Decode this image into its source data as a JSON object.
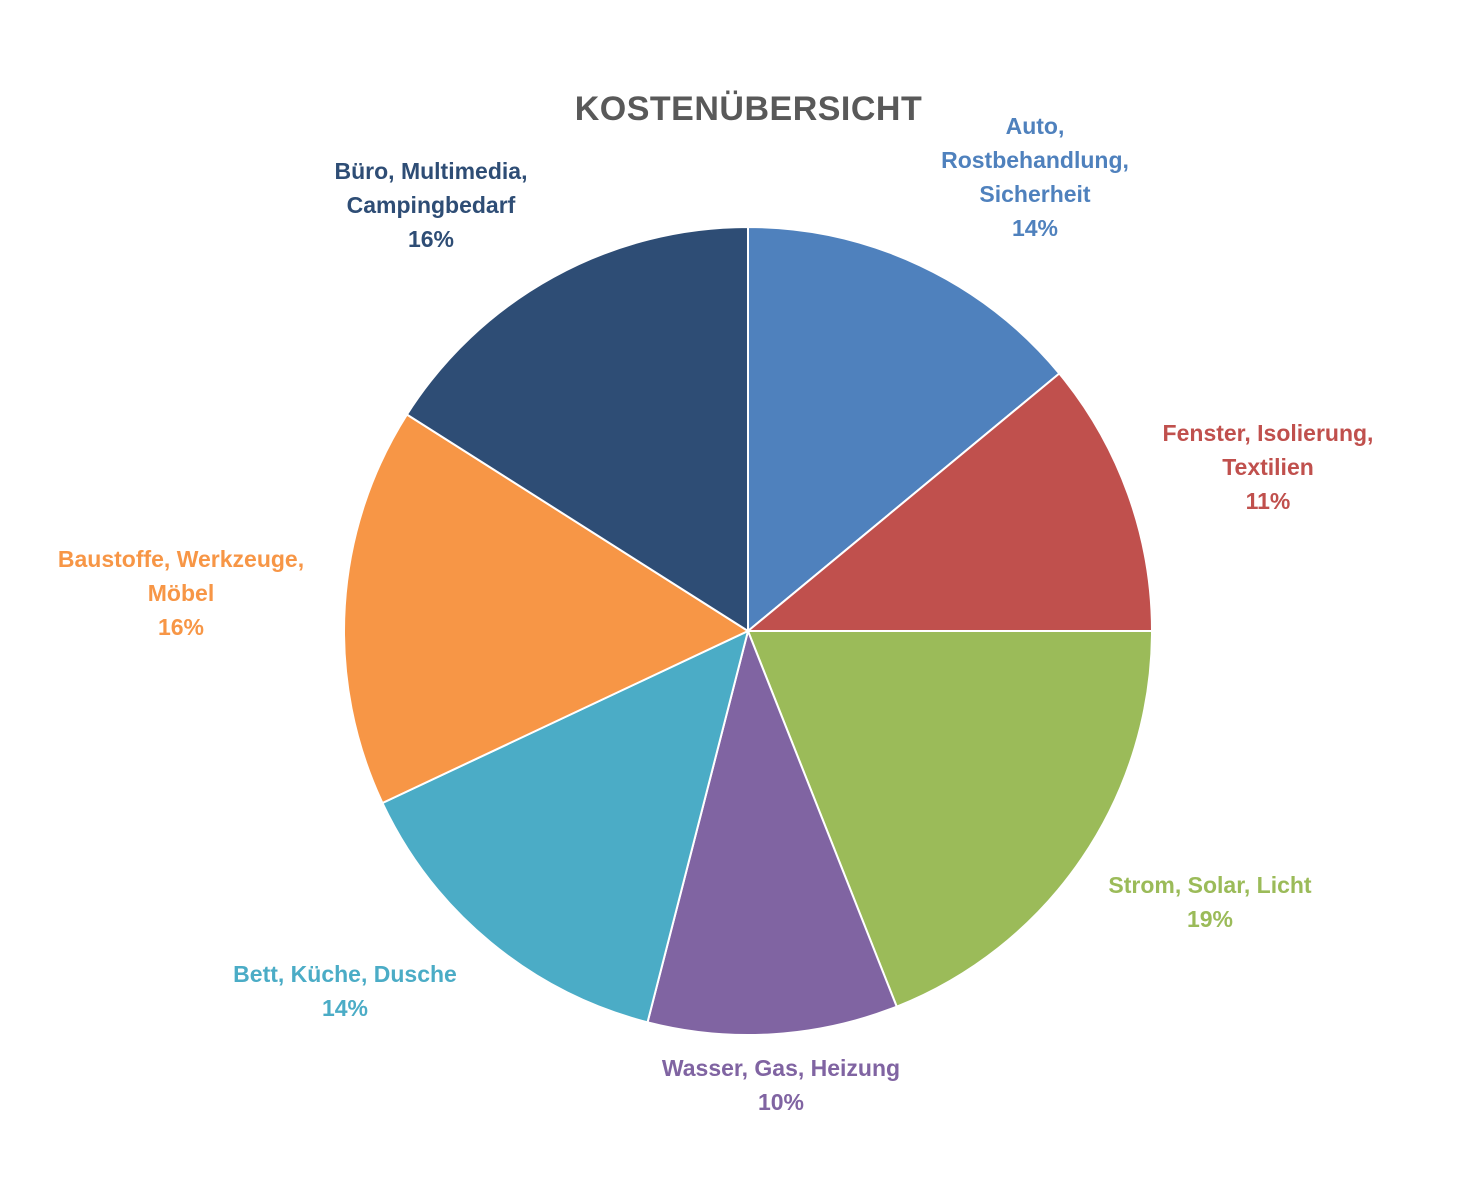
{
  "chart_data": {
    "type": "pie",
    "title": "KOSTENÜBERSICHT",
    "start_angle_deg": 0,
    "direction": "clockwise",
    "slices": [
      {
        "id": "auto",
        "lines": [
          "Auto,",
          "Rostbehandlung,",
          "Sicherheit"
        ],
        "value": 14,
        "pct_label": "14%",
        "color": "#4F81BD"
      },
      {
        "id": "fenster",
        "lines": [
          "Fenster, Isolierung,",
          "Textilien"
        ],
        "value": 11,
        "pct_label": "11%",
        "color": "#C0504D"
      },
      {
        "id": "strom",
        "lines": [
          "Strom, Solar, Licht"
        ],
        "value": 19,
        "pct_label": "19%",
        "color": "#9BBB59"
      },
      {
        "id": "wasser",
        "lines": [
          "Wasser, Gas, Heizung"
        ],
        "value": 10,
        "pct_label": "10%",
        "color": "#8064A2"
      },
      {
        "id": "bett",
        "lines": [
          "Bett, Küche, Dusche"
        ],
        "value": 14,
        "pct_label": "14%",
        "color": "#4BACC6"
      },
      {
        "id": "baustoffe",
        "lines": [
          "Baustoffe, Werkzeuge,",
          "Möbel"
        ],
        "value": 16,
        "pct_label": "16%",
        "color": "#F79646"
      },
      {
        "id": "buero",
        "lines": [
          "Büro, Multimedia,",
          "Campingbedarf"
        ],
        "value": 16,
        "pct_label": "16%",
        "color": "#2E4D75"
      }
    ]
  }
}
